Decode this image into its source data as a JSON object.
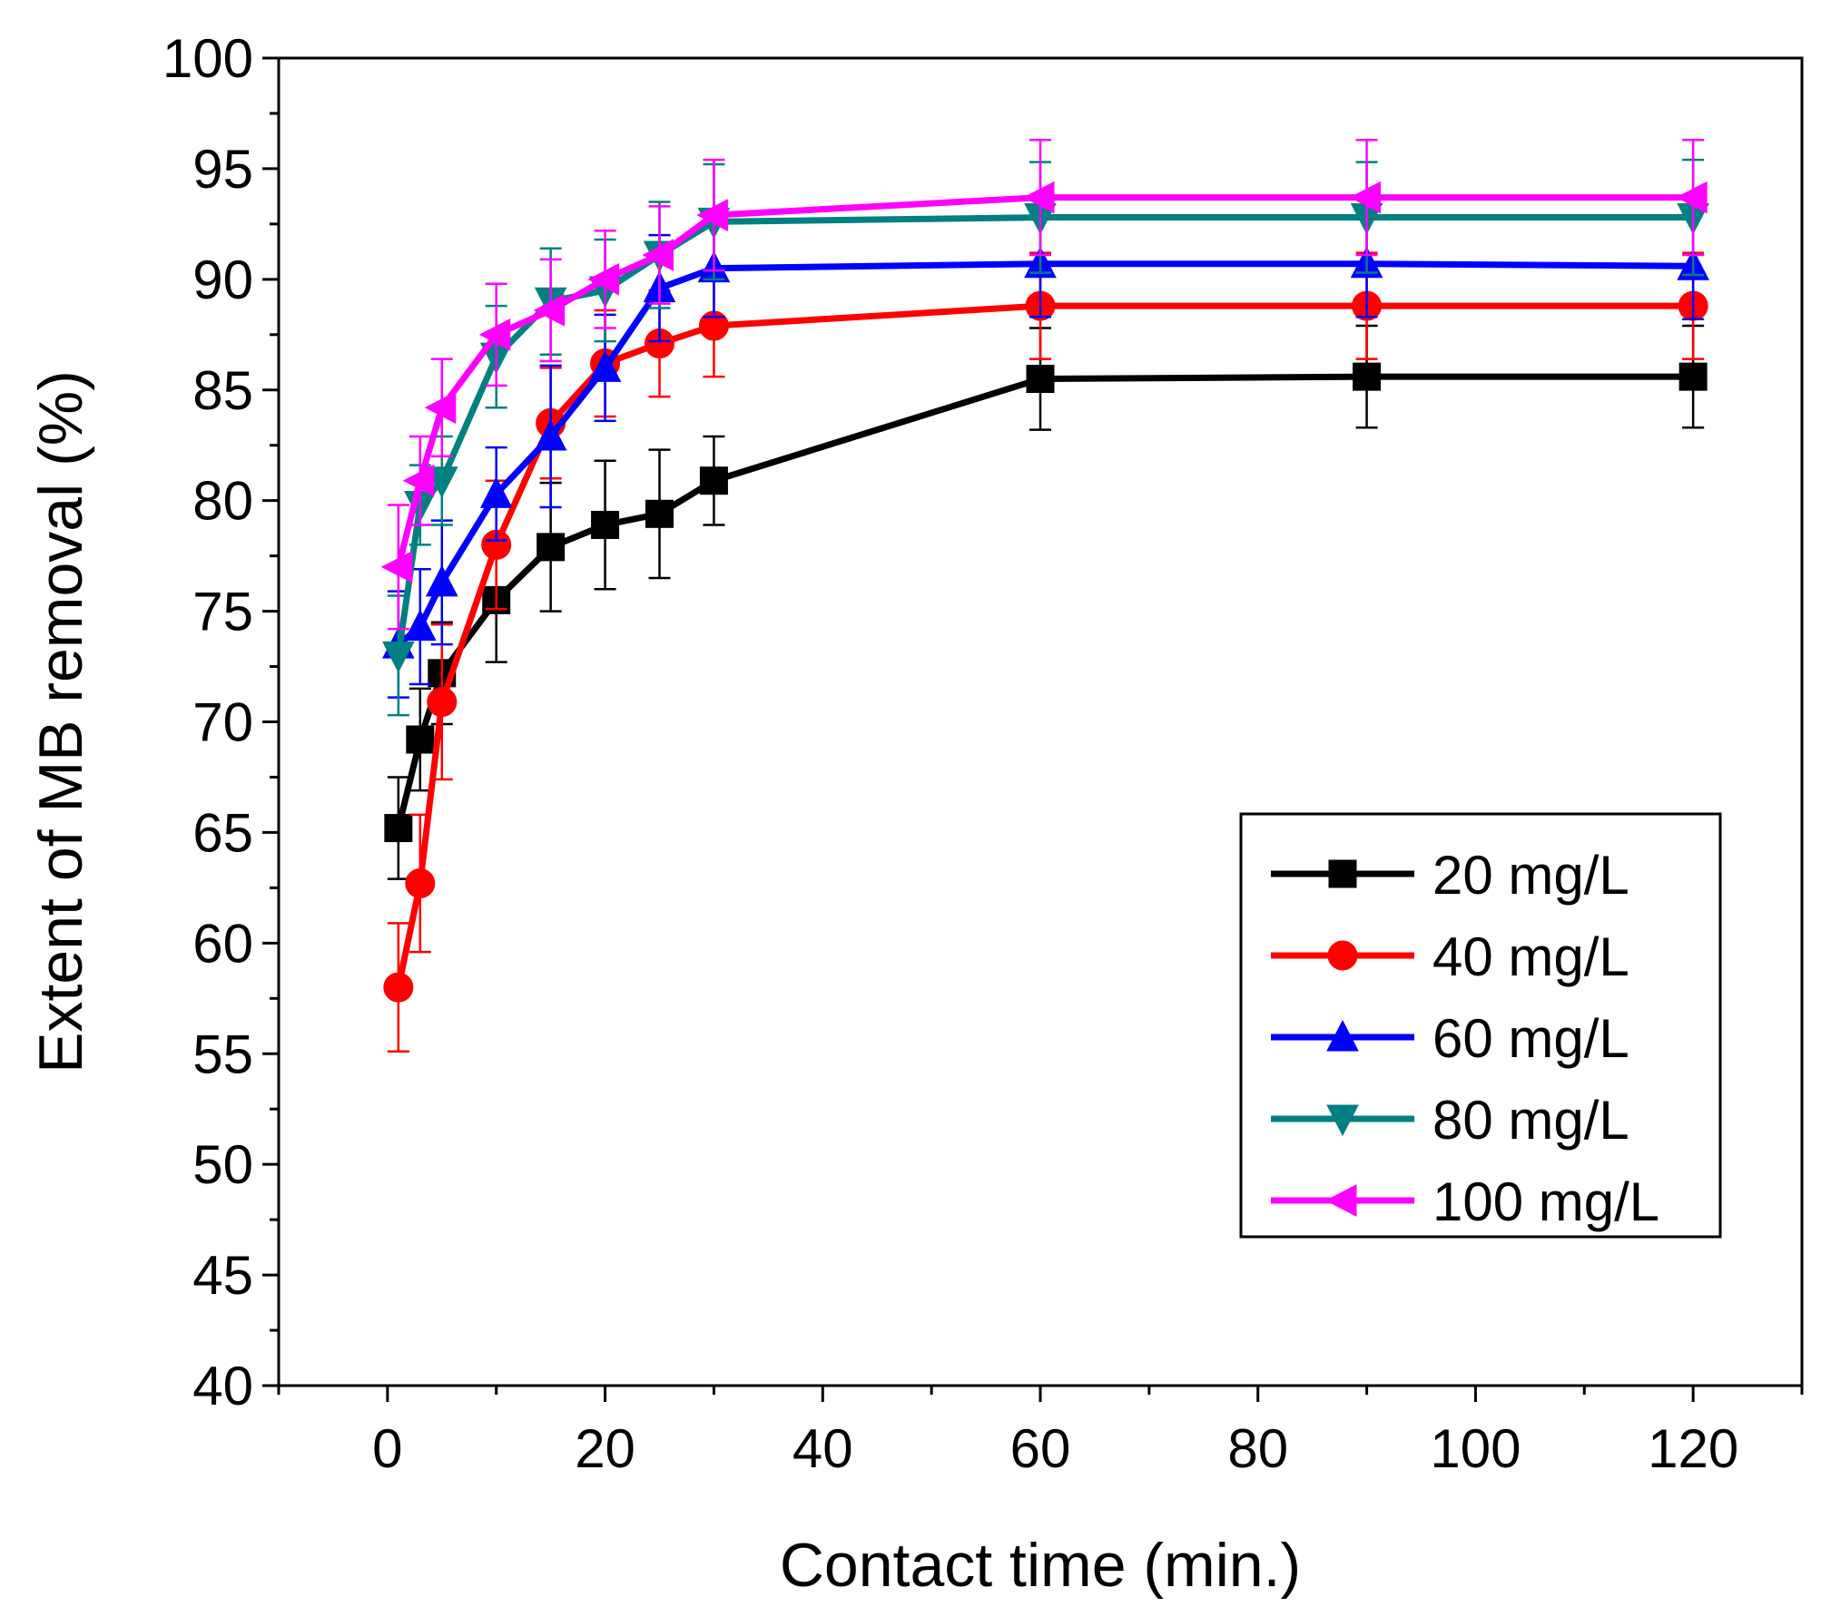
{
  "chart_data": {
    "type": "line",
    "title": "",
    "xlabel": "Contact time (min.)",
    "ylabel": "Extent of MB removal (%)",
    "xlim": [
      -10,
      130
    ],
    "ylim": [
      40,
      100
    ],
    "xticks": [
      0,
      20,
      40,
      60,
      80,
      100,
      120
    ],
    "xtick_labels": [
      "0",
      "20",
      "40",
      "60",
      "80",
      "100",
      "120"
    ],
    "yticks": [
      40,
      45,
      50,
      55,
      60,
      65,
      70,
      75,
      80,
      85,
      90,
      95,
      100
    ],
    "ytick_labels": [
      "40",
      "45",
      "50",
      "55",
      "60",
      "65",
      "70",
      "75",
      "80",
      "85",
      "90",
      "95",
      "100"
    ],
    "x": [
      1,
      3,
      5,
      10,
      15,
      20,
      25,
      30,
      60,
      90,
      120
    ],
    "error_bars": true,
    "legend_position": "bottom-right",
    "series": [
      {
        "name": "20 mg/L",
        "color": "#000000",
        "marker": "square",
        "values": [
          65.2,
          69.2,
          72.2,
          75.5,
          77.9,
          78.9,
          79.4,
          80.9,
          85.5,
          85.6,
          85.6
        ],
        "errors": [
          2.3,
          2.3,
          2.3,
          2.8,
          2.9,
          2.9,
          2.9,
          2.0,
          2.3,
          2.3,
          2.3
        ]
      },
      {
        "name": "40 mg/L",
        "color": "#ff0000",
        "marker": "circle",
        "values": [
          58.0,
          62.7,
          70.9,
          78.0,
          83.5,
          86.2,
          87.1,
          87.9,
          88.8,
          88.8,
          88.8
        ],
        "errors": [
          2.9,
          3.1,
          3.5,
          2.9,
          2.5,
          2.4,
          2.4,
          2.3,
          2.4,
          2.4,
          2.4
        ]
      },
      {
        "name": "60 mg/L",
        "color": "#0000ff",
        "marker": "triangle-up",
        "values": [
          73.5,
          74.3,
          76.3,
          80.3,
          82.9,
          86.0,
          89.6,
          90.5,
          90.7,
          90.7,
          90.6
        ],
        "errors": [
          2.4,
          2.6,
          2.8,
          2.1,
          3.2,
          2.4,
          2.4,
          2.2,
          2.4,
          2.4,
          2.4
        ]
      },
      {
        "name": "80 mg/L",
        "color": "#008080",
        "marker": "triangle-down",
        "values": [
          73.0,
          79.8,
          80.9,
          86.5,
          89.0,
          89.5,
          91.1,
          92.6,
          92.8,
          92.8,
          92.8
        ],
        "errors": [
          2.7,
          1.8,
          2.0,
          2.3,
          2.4,
          2.3,
          2.4,
          2.6,
          2.5,
          2.5,
          2.6
        ]
      },
      {
        "name": "100 mg/L",
        "color": "#ff00ff",
        "marker": "triangle-left",
        "values": [
          77.0,
          80.9,
          84.2,
          87.5,
          88.6,
          90.0,
          91.1,
          92.9,
          93.7,
          93.7,
          93.7
        ],
        "errors": [
          2.8,
          2.0,
          2.2,
          2.3,
          2.3,
          2.2,
          2.2,
          2.5,
          2.6,
          2.6,
          2.6
        ]
      }
    ]
  }
}
